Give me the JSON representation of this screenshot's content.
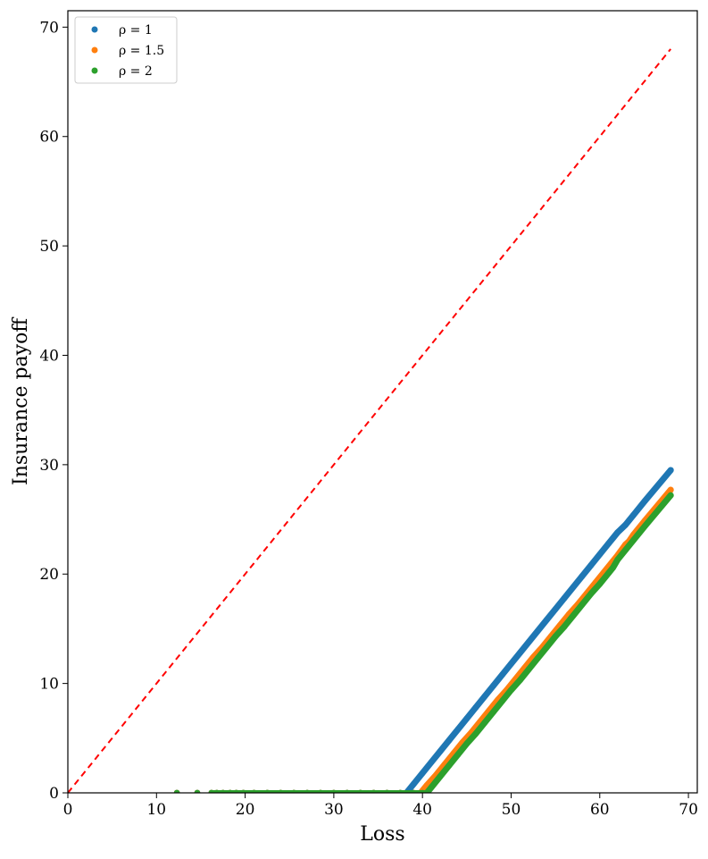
{
  "chart_data": {
    "type": "scatter",
    "xlabel": "Loss",
    "ylabel": "Insurance payoff",
    "xlim": [
      0,
      71
    ],
    "ylim": [
      0,
      71.5
    ],
    "x_ticks": [
      0,
      10,
      20,
      30,
      40,
      50,
      60,
      70
    ],
    "y_ticks": [
      0,
      10,
      20,
      30,
      40,
      50,
      60,
      70
    ],
    "grid": false,
    "legend_position": "top-left",
    "reference_line": {
      "x": [
        0,
        68
      ],
      "y": [
        0,
        68
      ],
      "color": "#ff0000",
      "style": "dashed"
    },
    "series": [
      {
        "name": "ρ = 1",
        "color": "#1f77b4",
        "deductible": 38.2,
        "points": [
          [
            12.3,
            0
          ],
          [
            14.6,
            0
          ],
          [
            16.2,
            0
          ],
          [
            16.8,
            0
          ],
          [
            17.5,
            0
          ],
          [
            18.3,
            0
          ],
          [
            19.0,
            0
          ],
          [
            19.8,
            0
          ],
          [
            21.0,
            0
          ],
          [
            22.5,
            0
          ],
          [
            24.0,
            0
          ],
          [
            25.5,
            0
          ],
          [
            27.0,
            0
          ],
          [
            28.5,
            0
          ],
          [
            30.0,
            0
          ],
          [
            31.5,
            0
          ],
          [
            33.0,
            0
          ],
          [
            34.5,
            0
          ],
          [
            36.0,
            0
          ],
          [
            37.5,
            0
          ],
          [
            38.2,
            0
          ],
          [
            39.0,
            0.8
          ],
          [
            40.0,
            1.8
          ],
          [
            41.0,
            2.8
          ],
          [
            42.0,
            3.8
          ],
          [
            43.0,
            4.8
          ],
          [
            44.0,
            5.8
          ],
          [
            45.0,
            6.8
          ],
          [
            46.0,
            7.8
          ],
          [
            47.0,
            8.8
          ],
          [
            48.0,
            9.8
          ],
          [
            49.0,
            10.8
          ],
          [
            50.0,
            11.8
          ],
          [
            51.0,
            12.8
          ],
          [
            52.0,
            13.8
          ],
          [
            53.0,
            14.8
          ],
          [
            54.0,
            15.8
          ],
          [
            55.0,
            16.8
          ],
          [
            56.0,
            17.8
          ],
          [
            57.0,
            18.8
          ],
          [
            58.0,
            19.8
          ],
          [
            59.0,
            20.8
          ],
          [
            60.0,
            21.8
          ],
          [
            61.0,
            22.8
          ],
          [
            61.5,
            23.3
          ],
          [
            62.0,
            23.8
          ],
          [
            62.9,
            24.5
          ],
          [
            63.3,
            24.9
          ],
          [
            63.8,
            25.4
          ],
          [
            64.2,
            25.8
          ],
          [
            65.1,
            26.7
          ],
          [
            68.0,
            29.5
          ]
        ]
      },
      {
        "name": "ρ = 1.5",
        "color": "#ff7f0e",
        "deductible": 39.8,
        "points": [
          [
            12.3,
            0
          ],
          [
            14.6,
            0
          ],
          [
            16.2,
            0
          ],
          [
            16.8,
            0
          ],
          [
            17.5,
            0
          ],
          [
            18.3,
            0
          ],
          [
            19.0,
            0
          ],
          [
            19.8,
            0
          ],
          [
            21.0,
            0
          ],
          [
            22.5,
            0
          ],
          [
            24.0,
            0
          ],
          [
            25.5,
            0
          ],
          [
            27.0,
            0
          ],
          [
            28.5,
            0
          ],
          [
            30.0,
            0
          ],
          [
            31.5,
            0
          ],
          [
            33.0,
            0
          ],
          [
            34.5,
            0
          ],
          [
            36.0,
            0
          ],
          [
            37.5,
            0
          ],
          [
            39.0,
            0
          ],
          [
            39.8,
            0
          ],
          [
            40.5,
            0.7
          ],
          [
            41.5,
            1.6
          ],
          [
            42.5,
            2.6
          ],
          [
            43.5,
            3.6
          ],
          [
            44.5,
            4.6
          ],
          [
            45.5,
            5.5
          ],
          [
            46.5,
            6.5
          ],
          [
            47.5,
            7.5
          ],
          [
            48.5,
            8.5
          ],
          [
            49.5,
            9.4
          ],
          [
            50.5,
            10.4
          ],
          [
            51.5,
            11.4
          ],
          [
            52.5,
            12.4
          ],
          [
            53.5,
            13.3
          ],
          [
            54.5,
            14.3
          ],
          [
            55.5,
            15.3
          ],
          [
            56.5,
            16.3
          ],
          [
            57.5,
            17.2
          ],
          [
            58.5,
            18.2
          ],
          [
            59.5,
            19.2
          ],
          [
            60.5,
            20.2
          ],
          [
            61.5,
            21.2
          ],
          [
            62.0,
            21.7
          ],
          [
            62.9,
            22.7
          ],
          [
            63.3,
            23.0
          ],
          [
            63.8,
            23.6
          ],
          [
            64.2,
            24.0
          ],
          [
            65.1,
            24.9
          ],
          [
            68.0,
            27.7
          ]
        ]
      },
      {
        "name": "ρ = 2",
        "color": "#2ca02c",
        "deductible": 40.5,
        "points": [
          [
            12.3,
            0
          ],
          [
            14.6,
            0
          ],
          [
            16.2,
            0
          ],
          [
            16.8,
            0
          ],
          [
            17.5,
            0
          ],
          [
            18.3,
            0
          ],
          [
            19.0,
            0
          ],
          [
            19.8,
            0
          ],
          [
            21.0,
            0
          ],
          [
            22.5,
            0
          ],
          [
            24.0,
            0
          ],
          [
            25.5,
            0
          ],
          [
            27.0,
            0
          ],
          [
            28.5,
            0
          ],
          [
            30.0,
            0
          ],
          [
            31.5,
            0
          ],
          [
            33.0,
            0
          ],
          [
            34.5,
            0
          ],
          [
            36.0,
            0
          ],
          [
            37.5,
            0
          ],
          [
            39.0,
            0
          ],
          [
            40.0,
            0
          ],
          [
            40.5,
            0
          ],
          [
            41.0,
            0.5
          ],
          [
            42.0,
            1.5
          ],
          [
            43.0,
            2.5
          ],
          [
            44.0,
            3.5
          ],
          [
            45.0,
            4.5
          ],
          [
            46.0,
            5.4
          ],
          [
            47.0,
            6.4
          ],
          [
            48.0,
            7.4
          ],
          [
            49.0,
            8.4
          ],
          [
            50.0,
            9.4
          ],
          [
            51.0,
            10.3
          ],
          [
            52.0,
            11.3
          ],
          [
            53.0,
            12.3
          ],
          [
            54.0,
            13.3
          ],
          [
            55.0,
            14.3
          ],
          [
            56.0,
            15.2
          ],
          [
            57.0,
            16.2
          ],
          [
            58.0,
            17.2
          ],
          [
            59.0,
            18.2
          ],
          [
            60.0,
            19.1
          ],
          [
            61.0,
            20.1
          ],
          [
            61.5,
            20.6
          ],
          [
            62.0,
            21.3
          ],
          [
            62.9,
            22.2
          ],
          [
            63.3,
            22.6
          ],
          [
            63.8,
            23.1
          ],
          [
            64.2,
            23.5
          ],
          [
            65.1,
            24.4
          ],
          [
            68.0,
            27.2
          ]
        ]
      }
    ]
  }
}
